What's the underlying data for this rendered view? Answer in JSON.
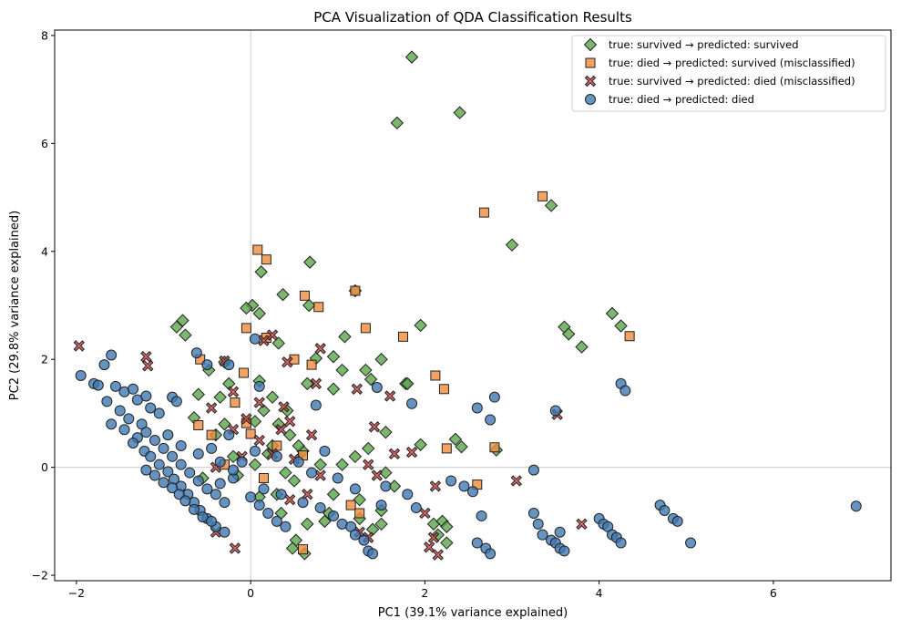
{
  "chart_data": {
    "type": "scatter",
    "title": "PCA Visualization of QDA Classification Results",
    "xlabel": "PC1 (39.1% variance explained)",
    "ylabel": "PC2 (29.8% variance explained)",
    "xlim": [
      -2.25,
      7.35
    ],
    "ylim": [
      -2.1,
      8.1
    ],
    "xticks": [
      -2,
      0,
      2,
      4,
      6
    ],
    "yticks": [
      -2,
      0,
      2,
      4,
      6,
      8
    ],
    "reference_lines": {
      "x": 0,
      "y": 0
    },
    "legend_position": "top-right",
    "series": [
      {
        "name": "true: survived → predicted: survived",
        "marker": "diamond",
        "color": "#5aa64a",
        "points": [
          [
            1.85,
            7.6
          ],
          [
            2.4,
            6.57
          ],
          [
            1.68,
            6.38
          ],
          [
            3.45,
            4.85
          ],
          [
            3.0,
            4.12
          ],
          [
            0.68,
            3.8
          ],
          [
            0.02,
            3.0
          ],
          [
            -0.05,
            2.95
          ],
          [
            0.12,
            3.62
          ],
          [
            0.37,
            3.2
          ],
          [
            0.67,
            3.0
          ],
          [
            1.2,
            3.27
          ],
          [
            1.95,
            2.63
          ],
          [
            -0.85,
            2.6
          ],
          [
            -0.78,
            2.72
          ],
          [
            -0.75,
            2.45
          ],
          [
            0.1,
            2.85
          ],
          [
            1.08,
            2.42
          ],
          [
            4.15,
            2.85
          ],
          [
            4.25,
            2.62
          ],
          [
            3.6,
            2.6
          ],
          [
            3.65,
            2.47
          ],
          [
            3.8,
            2.23
          ],
          [
            0.32,
            2.3
          ],
          [
            0.75,
            2.02
          ],
          [
            0.95,
            2.05
          ],
          [
            1.5,
            2.0
          ],
          [
            1.05,
            1.8
          ],
          [
            1.32,
            1.8
          ],
          [
            1.38,
            1.63
          ],
          [
            1.78,
            1.55
          ],
          [
            -0.3,
            1.95
          ],
          [
            -0.48,
            1.8
          ],
          [
            -0.25,
            1.55
          ],
          [
            0.1,
            1.6
          ],
          [
            0.65,
            1.55
          ],
          [
            0.95,
            1.45
          ],
          [
            -0.6,
            1.35
          ],
          [
            -0.35,
            1.3
          ],
          [
            0.25,
            1.3
          ],
          [
            0.15,
            1.05
          ],
          [
            0.42,
            1.05
          ],
          [
            1.55,
            0.65
          ],
          [
            1.95,
            0.42
          ],
          [
            2.35,
            0.52
          ],
          [
            2.42,
            0.38
          ],
          [
            2.82,
            0.32
          ],
          [
            1.35,
            0.35
          ],
          [
            0.25,
            0.4
          ],
          [
            0.6,
            0.3
          ],
          [
            -0.3,
            0.8
          ],
          [
            -0.65,
            0.92
          ],
          [
            0.05,
            0.85
          ],
          [
            0.32,
            0.8
          ],
          [
            0.55,
            0.4
          ],
          [
            1.05,
            0.05
          ],
          [
            1.55,
            -0.1
          ],
          [
            1.65,
            -0.35
          ],
          [
            0.4,
            -0.1
          ],
          [
            0.8,
            0.05
          ],
          [
            -0.2,
            0.2
          ],
          [
            0.5,
            -0.25
          ],
          [
            0.95,
            -0.5
          ],
          [
            0.3,
            -0.5
          ],
          [
            1.25,
            -0.6
          ],
          [
            1.5,
            -0.8
          ],
          [
            0.9,
            -0.85
          ],
          [
            1.25,
            -0.95
          ],
          [
            1.4,
            -1.15
          ],
          [
            1.5,
            -1.05
          ],
          [
            2.1,
            -1.05
          ],
          [
            2.2,
            -1.0
          ],
          [
            2.25,
            -1.1
          ],
          [
            2.15,
            -1.25
          ],
          [
            2.25,
            -1.4
          ],
          [
            0.65,
            -1.05
          ],
          [
            0.85,
            -1.0
          ],
          [
            0.52,
            -1.35
          ],
          [
            0.62,
            -1.6
          ],
          [
            0.48,
            -1.5
          ],
          [
            0.35,
            -0.85
          ],
          [
            0.1,
            -0.55
          ],
          [
            -0.15,
            -0.15
          ],
          [
            -0.4,
            0.6
          ],
          [
            0.45,
            0.6
          ],
          [
            -0.55,
            -0.2
          ],
          [
            0.05,
            0.05
          ],
          [
            0.2,
            0.25
          ],
          [
            1.2,
            0.2
          ],
          [
            1.8,
            1.55
          ]
        ]
      },
      {
        "name": "true: died  → predicted: survived (misclassified)",
        "marker": "square",
        "color": "#ef8c3c",
        "points": [
          [
            3.35,
            5.02
          ],
          [
            2.68,
            4.72
          ],
          [
            0.08,
            4.03
          ],
          [
            0.18,
            3.85
          ],
          [
            0.62,
            3.18
          ],
          [
            0.78,
            2.97
          ],
          [
            1.2,
            3.27
          ],
          [
            1.32,
            2.58
          ],
          [
            -0.05,
            2.58
          ],
          [
            0.18,
            2.4
          ],
          [
            1.75,
            2.42
          ],
          [
            4.35,
            2.43
          ],
          [
            -0.58,
            2.0
          ],
          [
            0.5,
            2.0
          ],
          [
            0.7,
            1.9
          ],
          [
            -0.08,
            1.75
          ],
          [
            2.12,
            1.7
          ],
          [
            2.22,
            1.45
          ],
          [
            -0.18,
            1.2
          ],
          [
            -0.05,
            0.82
          ],
          [
            0.0,
            0.62
          ],
          [
            -0.6,
            0.78
          ],
          [
            0.3,
            0.4
          ],
          [
            -0.45,
            0.6
          ],
          [
            0.6,
            0.22
          ],
          [
            2.25,
            0.35
          ],
          [
            2.8,
            0.37
          ],
          [
            2.6,
            -0.32
          ],
          [
            1.15,
            -0.7
          ],
          [
            0.6,
            -1.52
          ],
          [
            1.25,
            -0.85
          ],
          [
            -0.3,
            0.05
          ],
          [
            0.15,
            -0.2
          ]
        ]
      },
      {
        "name": "true: survived → predicted: died (misclassified)",
        "marker": "x",
        "color": "#c8403f",
        "points": [
          [
            -1.97,
            2.25
          ],
          [
            -1.2,
            2.05
          ],
          [
            -1.18,
            1.88
          ],
          [
            0.15,
            2.35
          ],
          [
            0.25,
            2.45
          ],
          [
            0.8,
            2.2
          ],
          [
            0.42,
            1.95
          ],
          [
            -0.3,
            1.97
          ],
          [
            0.75,
            1.55
          ],
          [
            -0.2,
            1.4
          ],
          [
            0.1,
            1.2
          ],
          [
            0.38,
            1.12
          ],
          [
            1.6,
            1.32
          ],
          [
            1.22,
            1.45
          ],
          [
            -0.45,
            1.1
          ],
          [
            -0.05,
            0.9
          ],
          [
            0.45,
            0.85
          ],
          [
            0.7,
            0.6
          ],
          [
            1.42,
            0.75
          ],
          [
            1.65,
            0.25
          ],
          [
            1.85,
            0.28
          ],
          [
            1.35,
            0.05
          ],
          [
            1.45,
            -0.15
          ],
          [
            0.25,
            0.25
          ],
          [
            0.5,
            0.15
          ],
          [
            -0.1,
            0.2
          ],
          [
            -0.4,
            0.0
          ],
          [
            0.8,
            -0.15
          ],
          [
            2.12,
            -0.35
          ],
          [
            3.05,
            -0.25
          ],
          [
            3.52,
            0.98
          ],
          [
            3.8,
            -1.05
          ],
          [
            2.0,
            -0.85
          ],
          [
            2.05,
            -1.48
          ],
          [
            2.15,
            -1.62
          ],
          [
            1.25,
            -1.2
          ],
          [
            1.35,
            -1.3
          ],
          [
            -0.18,
            -1.5
          ],
          [
            -0.4,
            -1.2
          ],
          [
            0.45,
            -0.6
          ],
          [
            0.1,
            0.5
          ],
          [
            -0.2,
            0.7
          ],
          [
            0.35,
            0.7
          ],
          [
            0.65,
            -0.5
          ],
          [
            2.1,
            -1.3
          ]
        ]
      },
      {
        "name": "true: died  → predicted: died",
        "marker": "circle",
        "color": "#3e78b3",
        "points": [
          [
            -1.95,
            1.7
          ],
          [
            -1.8,
            1.55
          ],
          [
            -1.75,
            1.52
          ],
          [
            -1.68,
            1.9
          ],
          [
            -1.6,
            2.08
          ],
          [
            -1.55,
            1.5
          ],
          [
            -1.45,
            1.4
          ],
          [
            -1.35,
            1.45
          ],
          [
            -1.3,
            1.25
          ],
          [
            -1.2,
            1.32
          ],
          [
            -1.15,
            1.1
          ],
          [
            -1.05,
            1.0
          ],
          [
            -0.9,
            1.3
          ],
          [
            -0.85,
            1.22
          ],
          [
            -0.62,
            2.12
          ],
          [
            -0.5,
            1.9
          ],
          [
            -0.25,
            1.9
          ],
          [
            0.05,
            2.38
          ],
          [
            0.1,
            1.5
          ],
          [
            0.75,
            1.15
          ],
          [
            1.45,
            1.48
          ],
          [
            1.85,
            1.18
          ],
          [
            2.6,
            1.1
          ],
          [
            2.8,
            1.3
          ],
          [
            2.75,
            0.88
          ],
          [
            3.5,
            1.05
          ],
          [
            4.25,
            1.55
          ],
          [
            4.3,
            1.42
          ],
          [
            -1.65,
            1.22
          ],
          [
            -1.5,
            1.05
          ],
          [
            -1.4,
            0.9
          ],
          [
            -1.25,
            0.8
          ],
          [
            -1.2,
            0.65
          ],
          [
            -1.1,
            0.5
          ],
          [
            -1.0,
            0.35
          ],
          [
            -0.9,
            0.2
          ],
          [
            -0.8,
            0.05
          ],
          [
            -0.7,
            -0.1
          ],
          [
            -0.6,
            -0.25
          ],
          [
            -0.5,
            -0.4
          ],
          [
            -0.4,
            -0.5
          ],
          [
            -0.3,
            -0.65
          ],
          [
            -1.3,
            0.55
          ],
          [
            -1.22,
            0.3
          ],
          [
            -1.15,
            0.2
          ],
          [
            -1.05,
            0.05
          ],
          [
            -0.95,
            -0.08
          ],
          [
            -0.88,
            -0.22
          ],
          [
            -0.8,
            -0.35
          ],
          [
            -0.72,
            -0.5
          ],
          [
            -0.65,
            -0.65
          ],
          [
            -0.58,
            -0.8
          ],
          [
            -0.5,
            -0.95
          ],
          [
            -0.4,
            -1.1
          ],
          [
            -0.3,
            -1.2
          ],
          [
            -1.2,
            -0.05
          ],
          [
            -1.1,
            -0.15
          ],
          [
            -1.0,
            -0.28
          ],
          [
            -0.9,
            -0.38
          ],
          [
            -0.82,
            -0.5
          ],
          [
            -0.75,
            -0.62
          ],
          [
            -0.65,
            -0.78
          ],
          [
            -0.55,
            -0.92
          ],
          [
            -0.45,
            -1.0
          ],
          [
            -0.35,
            -0.3
          ],
          [
            -0.2,
            -0.2
          ],
          [
            -0.1,
            0.1
          ],
          [
            0.05,
            0.3
          ],
          [
            -0.25,
            0.6
          ],
          [
            -0.45,
            0.35
          ],
          [
            0.0,
            -0.55
          ],
          [
            0.1,
            -0.7
          ],
          [
            0.2,
            -0.85
          ],
          [
            0.3,
            -1.0
          ],
          [
            0.4,
            -1.1
          ],
          [
            0.15,
            -0.4
          ],
          [
            0.35,
            -0.5
          ],
          [
            0.6,
            -0.65
          ],
          [
            0.8,
            -0.75
          ],
          [
            0.95,
            -0.9
          ],
          [
            1.05,
            -1.05
          ],
          [
            1.15,
            -1.1
          ],
          [
            1.2,
            -1.25
          ],
          [
            1.3,
            -1.35
          ],
          [
            1.35,
            -1.55
          ],
          [
            1.4,
            -1.6
          ],
          [
            1.5,
            -0.7
          ],
          [
            1.55,
            -0.35
          ],
          [
            1.8,
            -0.5
          ],
          [
            1.9,
            -0.75
          ],
          [
            2.3,
            -0.25
          ],
          [
            2.45,
            -0.35
          ],
          [
            2.55,
            -0.45
          ],
          [
            2.65,
            -0.9
          ],
          [
            2.6,
            -1.4
          ],
          [
            2.7,
            -1.5
          ],
          [
            2.75,
            -1.6
          ],
          [
            3.25,
            -0.05
          ],
          [
            3.25,
            -0.85
          ],
          [
            3.3,
            -1.05
          ],
          [
            3.35,
            -1.25
          ],
          [
            3.45,
            -1.35
          ],
          [
            3.5,
            -1.4
          ],
          [
            3.55,
            -1.5
          ],
          [
            3.6,
            -1.55
          ],
          [
            3.55,
            -1.2
          ],
          [
            4.0,
            -0.95
          ],
          [
            4.05,
            -1.05
          ],
          [
            4.1,
            -1.1
          ],
          [
            4.15,
            -1.25
          ],
          [
            4.2,
            -1.3
          ],
          [
            4.25,
            -1.4
          ],
          [
            4.7,
            -0.7
          ],
          [
            4.75,
            -0.8
          ],
          [
            4.85,
            -0.95
          ],
          [
            4.9,
            -1.0
          ],
          [
            5.05,
            -1.4
          ],
          [
            6.95,
            -0.72
          ],
          [
            0.55,
            0.1
          ],
          [
            0.7,
            -0.1
          ],
          [
            1.0,
            -0.2
          ],
          [
            1.2,
            -0.4
          ],
          [
            0.85,
            0.3
          ],
          [
            -1.6,
            0.8
          ],
          [
            -1.45,
            0.7
          ],
          [
            -1.35,
            0.45
          ],
          [
            -0.95,
            0.6
          ],
          [
            -0.8,
            0.4
          ],
          [
            -0.6,
            0.25
          ],
          [
            -0.35,
            0.1
          ],
          [
            -0.2,
            -0.05
          ],
          [
            0.3,
            0.2
          ]
        ]
      }
    ]
  }
}
